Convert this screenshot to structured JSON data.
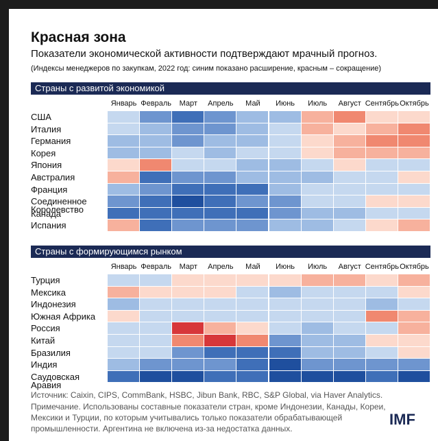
{
  "header": {
    "title": "Красная зона",
    "subtitle": "Показатели экономической активности подтверждают мрачный прогноз.",
    "note": "(Индексы менеджеров по закупкам, 2022 год: синим показано расширение, красным – сокращение)"
  },
  "chart_data": [
    {
      "type": "heatmap",
      "title": "Страны с развитой экономикой",
      "categories": [
        "Январь",
        "Февраль",
        "Март",
        "Апрель",
        "Май",
        "Июнь",
        "Июль",
        "Август",
        "Сентябрь",
        "Октябрь"
      ],
      "rows": [
        "США",
        "Италия",
        "Германия",
        "Корея",
        "Япония",
        "Австралия",
        "Франция",
        "Соединенное\nКоролевство",
        "Канада",
        "Испания"
      ],
      "colors": [
        [
          "#c5d8ef",
          "#6e95cf",
          "#3f6fb8",
          "#6e95cf",
          "#9ebce3",
          "#9ebce3",
          "#f7b19d",
          "#f08870",
          "#fcd9cc",
          "#fcd9cc"
        ],
        [
          "#c5d8ef",
          "#9ebce3",
          "#6e95cf",
          "#6e95cf",
          "#9ebce3",
          "#c5d8ef",
          "#f7b19d",
          "#fcd9cc",
          "#f7b19d",
          "#f08870"
        ],
        [
          "#9ebce3",
          "#9ebce3",
          "#6e95cf",
          "#9ebce3",
          "#9ebce3",
          "#c5d8ef",
          "#fcd9cc",
          "#f7b19d",
          "#f08870",
          "#f08870"
        ],
        [
          "#9ebce3",
          "#9ebce3",
          "#c5d8ef",
          "#9ebce3",
          "#c5d8ef",
          "#c5d8ef",
          "#fcd9cc",
          "#f7b19d",
          "#f7b19d",
          "#f7b19d"
        ],
        [
          "#fcd9cc",
          "#f08870",
          "#c5d8ef",
          "#c5d8ef",
          "#9ebce3",
          "#9ebce3",
          "#c5d8ef",
          "#fcd9cc",
          "#c5d8ef",
          "#c5d8ef"
        ],
        [
          "#f7b19d",
          "#3f6fb8",
          "#6e95cf",
          "#6e95cf",
          "#9ebce3",
          "#9ebce3",
          "#9ebce3",
          "#c5d8ef",
          "#c5d8ef",
          "#fcd9cc"
        ],
        [
          "#9ebce3",
          "#6e95cf",
          "#3f6fb8",
          "#3f6fb8",
          "#3f6fb8",
          "#9ebce3",
          "#c5d8ef",
          "#c5d8ef",
          "#c5d8ef",
          "#c5d8ef"
        ],
        [
          "#6e95cf",
          "#3f6fb8",
          "#1f4f9e",
          "#3f6fb8",
          "#6e95cf",
          "#6e95cf",
          "#c5d8ef",
          "#c5d8ef",
          "#fcd9cc",
          "#fcd9cc"
        ],
        [
          "#3f6fb8",
          "#3f6fb8",
          "#3f6fb8",
          "#3f6fb8",
          "#3f6fb8",
          "#6e95cf",
          "#9ebce3",
          "#9ebce3",
          "#c5d8ef",
          "#c5d8ef"
        ],
        [
          "#f7b19d",
          "#3f6fb8",
          "#6e95cf",
          "#6e95cf",
          "#6e95cf",
          "#9ebce3",
          "#9ebce3",
          "#c5d8ef",
          "#fcd9cc",
          "#f7b19d"
        ]
      ]
    },
    {
      "type": "heatmap",
      "title": "Страны с формирующимся рынком",
      "categories": [
        "Январь",
        "Февраль",
        "Март",
        "Апрель",
        "Май",
        "Июнь",
        "Июль",
        "Август",
        "Сентябрь",
        "Октябрь"
      ],
      "rows": [
        "Турция",
        "Мексика",
        "Индонезия",
        "Южная Африка",
        "Россия",
        "Китай",
        "Бразилия",
        "Индия",
        "Саудовская\nАравия"
      ],
      "colors": [
        [
          "#c5d8ef",
          "#c5d8ef",
          "#fcd9cc",
          "#fcd9cc",
          "#fcd9cc",
          "#fcd9cc",
          "#f7b19d",
          "#f7b19d",
          "#fcd9cc",
          "#f7b19d"
        ],
        [
          "#f7b19d",
          "#fcd9cc",
          "#fcd9cc",
          "#fcd9cc",
          "#c5d8ef",
          "#9ebce3",
          "#c5d8ef",
          "#c5d8ef",
          "#c5d8ef",
          "#fcd9cc"
        ],
        [
          "#9ebce3",
          "#c5d8ef",
          "#c5d8ef",
          "#c5d8ef",
          "#c5d8ef",
          "#c5d8ef",
          "#c5d8ef",
          "#c5d8ef",
          "#9ebce3",
          "#c5d8ef"
        ],
        [
          "#fcd9cc",
          "#c5d8ef",
          "#c5d8ef",
          "#c5d8ef",
          "#c5d8ef",
          "#c5d8ef",
          "#c5d8ef",
          "#c5d8ef",
          "#f08870",
          "#f7b19d"
        ],
        [
          "#c5d8ef",
          "#c5d8ef",
          "#d7373a",
          "#f7b19d",
          "#fcd9cc",
          "#c5d8ef",
          "#9ebce3",
          "#c5d8ef",
          "#c5d8ef",
          "#f7b19d"
        ],
        [
          "#c5d8ef",
          "#c5d8ef",
          "#f08870",
          "#d7373a",
          "#f08870",
          "#6e95cf",
          "#9ebce3",
          "#9ebce3",
          "#fcd9cc",
          "#fcd9cc"
        ],
        [
          "#c5d8ef",
          "#c5d8ef",
          "#6e95cf",
          "#3f6fb8",
          "#3f6fb8",
          "#3f6fb8",
          "#9ebce3",
          "#9ebce3",
          "#c5d8ef",
          "#fcd9cc"
        ],
        [
          "#9ebce3",
          "#6e95cf",
          "#6e95cf",
          "#6e95cf",
          "#3f6fb8",
          "#1f4f9e",
          "#6e95cf",
          "#6e95cf",
          "#6e95cf",
          "#6e95cf"
        ],
        [
          "#3f6fb8",
          "#1f4f9e",
          "#1f4f9e",
          "#3f6fb8",
          "#3f6fb8",
          "#1f4f9e",
          "#1f4f9e",
          "#1f4f9e",
          "#3f6fb8",
          "#1f4f9e"
        ]
      ]
    }
  ],
  "footer": {
    "source": "Источник: Caixin, CIPS, CommBank, HSBC, Jibun Bank, RBC, S&P Global, via Haver Analytics.",
    "note": "Примечание. Использованы составные показатели стран, кроме Индонезии, Канады, Кореи, Мексики и Турции, по которым учитывались только показатели обрабатывающей промышленности. Аргентина не включена из-за недостатка данных.",
    "logo": "IMF"
  }
}
